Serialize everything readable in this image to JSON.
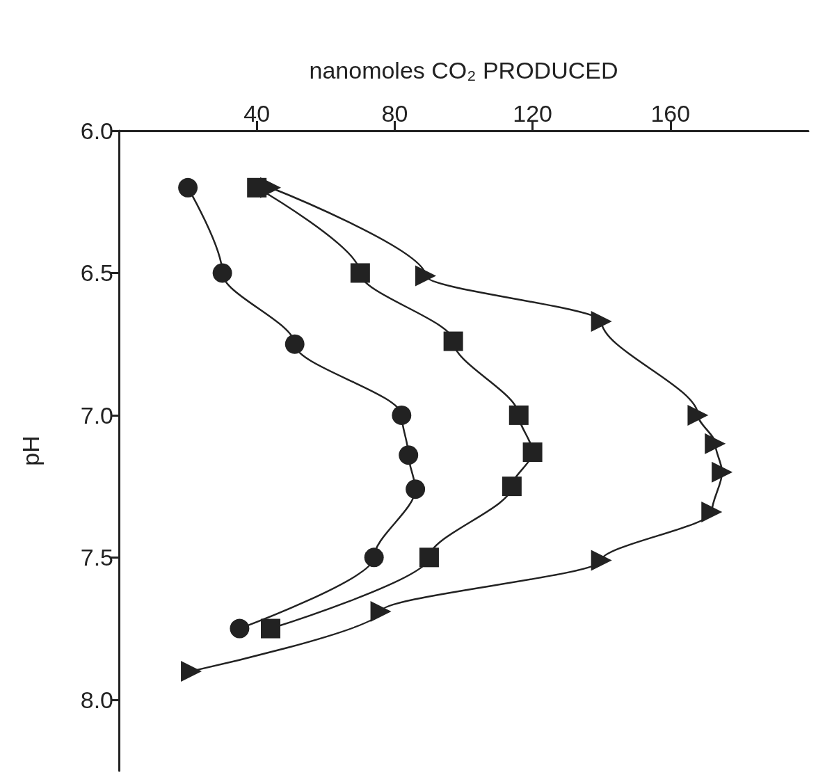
{
  "chart_data": {
    "type": "line",
    "orientation": "horizontal",
    "xlabel": "nanomoles CO₂ PRODUCED",
    "ylabel": "pH",
    "xlim": [
      0,
      200
    ],
    "xticks": [
      40,
      80,
      120,
      160
    ],
    "ylim": [
      8.25,
      6.0
    ],
    "yticks": [
      {
        "value": 6,
        "label": "6.0"
      },
      {
        "value": 6.5,
        "label": "6.5"
      },
      {
        "value": 7,
        "label": "7.0"
      },
      {
        "value": 7.5,
        "label": "7.5"
      },
      {
        "value": 8,
        "label": "8.0"
      }
    ],
    "grid": false,
    "line_style": "solid",
    "series": [
      {
        "color": "#222222",
        "marker": "circle",
        "x": [
          6.2,
          6.5,
          6.75,
          7.0,
          7.14,
          7.26,
          7.5,
          7.75
        ],
        "values": [
          20,
          30,
          51,
          82,
          84,
          86,
          74,
          35
        ]
      },
      {
        "color": "#222222",
        "marker": "square",
        "x": [
          6.2,
          6.5,
          6.74,
          7.0,
          7.13,
          7.25,
          7.5,
          7.75
        ],
        "values": [
          40,
          70,
          97,
          116,
          120,
          114,
          90,
          44
        ]
      },
      {
        "color": "#222222",
        "marker": "triangle",
        "x": [
          6.2,
          6.51,
          6.67,
          7.0,
          7.1,
          7.2,
          7.34,
          7.51,
          7.69,
          7.9
        ],
        "values": [
          44,
          89,
          140,
          168,
          173,
          175,
          172,
          140,
          76,
          21
        ]
      }
    ]
  }
}
